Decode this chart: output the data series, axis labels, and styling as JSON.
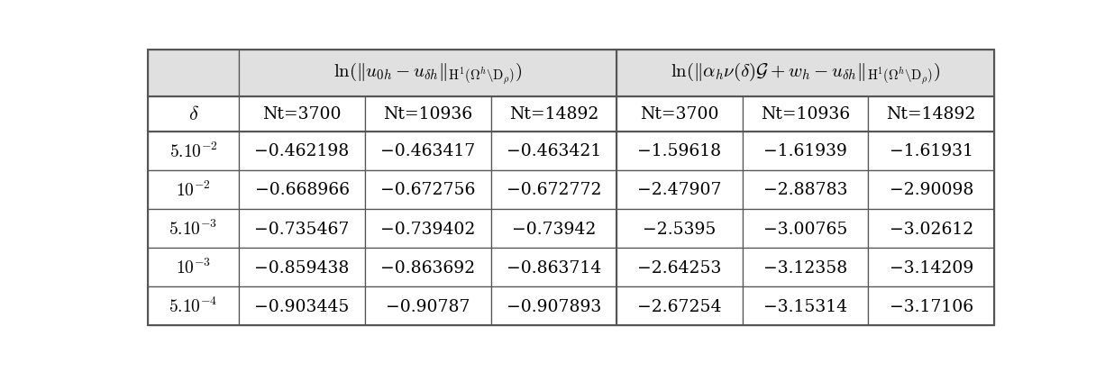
{
  "nt_labels": [
    "Nt=3700",
    "Nt=10936",
    "Nt=14892"
  ],
  "delta_labels_tex": [
    "$5.10^{-2}$",
    "$10^{-2}$",
    "$5.10^{-3}$",
    "$10^{-3}$",
    "$5.10^{-4}$"
  ],
  "data_left": [
    [
      "−0.462198",
      "−0.463417",
      "−0.463421"
    ],
    [
      "−0.668966",
      "−0.672756",
      "−0.672772"
    ],
    [
      "−0.735467",
      "−0.739402",
      "−0.73942"
    ],
    [
      "−0.859438",
      "−0.863692",
      "−0.863714"
    ],
    [
      "−0.903445",
      "−0.90787",
      "−0.907893"
    ]
  ],
  "data_right": [
    [
      "−1.59618",
      "−1.61939",
      "−1.61931"
    ],
    [
      "−2.47907",
      "−2.88783",
      "−2.90098"
    ],
    [
      "−2.5395",
      "−3.00765",
      "−3.02612"
    ],
    [
      "−2.64253",
      "−3.12358",
      "−3.14209"
    ],
    [
      "−2.67254",
      "−3.15314",
      "−3.17106"
    ]
  ],
  "header_bg": "#e0e0e0",
  "bg_color": "#ffffff",
  "border_color": "#555555",
  "text_color": "#000000"
}
